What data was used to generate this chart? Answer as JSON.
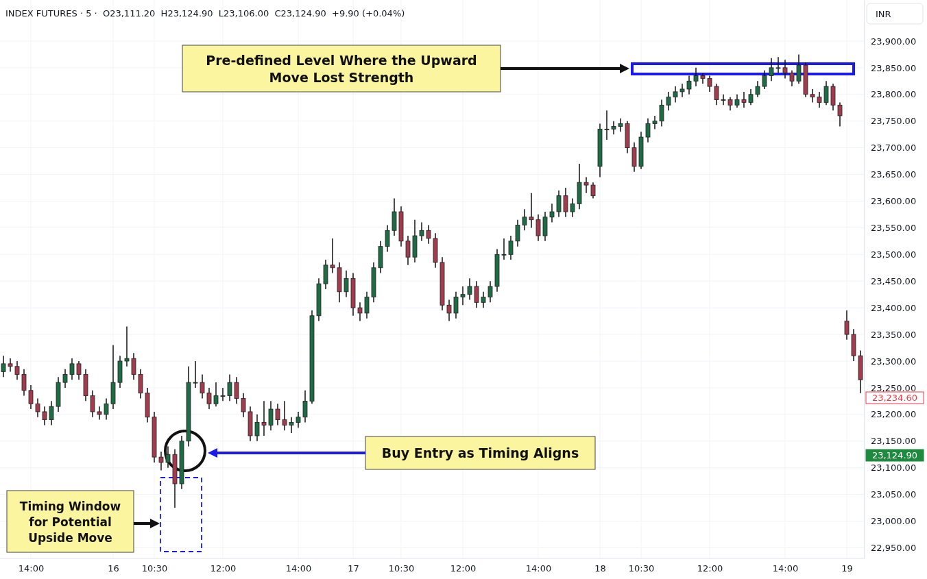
{
  "chart_data": {
    "type": "candlestick",
    "title": "INDEX FUTURES · 5 ·  O23,111.20  H23,124.90  L23,106.00  C23,124.90  +9.90 (+0.04%)",
    "categories": [
      null,
      null,
      null,
      null,
      "14:00",
      null,
      null,
      null,
      null,
      null,
      null,
      null,
      null,
      null,
      null,
      null,
      "16",
      null,
      null,
      null,
      null,
      null,
      "10:30",
      null,
      null,
      null,
      null,
      null,
      null,
      null,
      null,
      null,
      "12:00",
      null,
      null,
      null,
      null,
      null,
      null,
      null,
      null,
      null,
      null,
      "14:00",
      null,
      null,
      null,
      null,
      null,
      null,
      null,
      "17",
      null,
      null,
      null,
      null,
      null,
      null,
      "10:30",
      null,
      null,
      null,
      null,
      null,
      null,
      null,
      null,
      "12:00",
      null,
      null,
      null,
      null,
      null,
      null,
      null,
      null,
      null,
      null,
      "14:00",
      null,
      null,
      null,
      null,
      null,
      null,
      null,
      null,
      "18",
      null,
      null,
      null,
      null,
      null,
      "10:30",
      null,
      null,
      null,
      null,
      null,
      null,
      null,
      null,
      null,
      "12:00",
      null,
      null,
      null,
      null,
      null,
      null,
      null,
      null,
      null,
      null,
      "14:00",
      null,
      null,
      null,
      null,
      null,
      null,
      null,
      null,
      "19",
      null,
      null
    ],
    "ohlc": [
      [
        23280,
        23310,
        23270,
        23295
      ],
      [
        23295,
        23305,
        23280,
        23290
      ],
      [
        23290,
        23300,
        23265,
        23275
      ],
      [
        23275,
        23285,
        23235,
        23245
      ],
      [
        23245,
        23255,
        23210,
        23220
      ],
      [
        23220,
        23230,
        23195,
        23205
      ],
      [
        23205,
        23215,
        23180,
        23190
      ],
      [
        23190,
        23225,
        23180,
        23215
      ],
      [
        23215,
        23270,
        23205,
        23260
      ],
      [
        23260,
        23285,
        23250,
        23275
      ],
      [
        23275,
        23305,
        23265,
        23295
      ],
      [
        23295,
        23300,
        23265,
        23275
      ],
      [
        23275,
        23285,
        23225,
        23235
      ],
      [
        23235,
        23245,
        23195,
        23205
      ],
      [
        23205,
        23215,
        23190,
        23200
      ],
      [
        23200,
        23230,
        23190,
        23220
      ],
      [
        23220,
        23330,
        23210,
        23260
      ],
      [
        23260,
        23310,
        23250,
        23300
      ],
      [
        23300,
        23365,
        23290,
        23305
      ],
      [
        23305,
        23315,
        23265,
        23275
      ],
      [
        23275,
        23285,
        23230,
        23240
      ],
      [
        23240,
        23250,
        23185,
        23195
      ],
      [
        23195,
        23205,
        23110,
        23120
      ],
      [
        23120,
        23130,
        23095,
        23110
      ],
      [
        23110,
        23140,
        23100,
        23125
      ],
      [
        23125,
        23135,
        23025,
        23070
      ],
      [
        23070,
        23160,
        23060,
        23150
      ],
      [
        23150,
        23290,
        23140,
        23260
      ],
      [
        23260,
        23300,
        23250,
        23260
      ],
      [
        23260,
        23275,
        23230,
        23240
      ],
      [
        23240,
        23250,
        23210,
        23220
      ],
      [
        23220,
        23260,
        23215,
        23235
      ],
      [
        23235,
        23250,
        23225,
        23235
      ],
      [
        23235,
        23275,
        23225,
        23260
      ],
      [
        23260,
        23270,
        23220,
        23230
      ],
      [
        23230,
        23240,
        23195,
        23205
      ],
      [
        23205,
        23215,
        23150,
        23160
      ],
      [
        23160,
        23200,
        23150,
        23185
      ],
      [
        23185,
        23225,
        23160,
        23180
      ],
      [
        23180,
        23225,
        23170,
        23210
      ],
      [
        23210,
        23220,
        23180,
        23190
      ],
      [
        23190,
        23225,
        23170,
        23180
      ],
      [
        23180,
        23195,
        23165,
        23185
      ],
      [
        23185,
        23205,
        23175,
        23195
      ],
      [
        23195,
        23245,
        23185,
        23225
      ],
      [
        23225,
        23395,
        23220,
        23385
      ],
      [
        23385,
        23455,
        23375,
        23445
      ],
      [
        23445,
        23490,
        23435,
        23480
      ],
      [
        23480,
        23530,
        23465,
        23475
      ],
      [
        23475,
        23485,
        23410,
        23430
      ],
      [
        23430,
        23470,
        23420,
        23455
      ],
      [
        23455,
        23465,
        23385,
        23400
      ],
      [
        23400,
        23410,
        23375,
        23390
      ],
      [
        23390,
        23430,
        23380,
        23420
      ],
      [
        23420,
        23485,
        23410,
        23475
      ],
      [
        23475,
        23525,
        23465,
        23515
      ],
      [
        23515,
        23555,
        23505,
        23545
      ],
      [
        23545,
        23605,
        23535,
        23580
      ],
      [
        23580,
        23590,
        23515,
        23525
      ],
      [
        23525,
        23535,
        23480,
        23495
      ],
      [
        23495,
        23565,
        23485,
        23535
      ],
      [
        23535,
        23560,
        23525,
        23545
      ],
      [
        23545,
        23555,
        23520,
        23530
      ],
      [
        23530,
        23540,
        23475,
        23485
      ],
      [
        23485,
        23495,
        23395,
        23405
      ],
      [
        23405,
        23415,
        23375,
        23390
      ],
      [
        23390,
        23430,
        23380,
        23420
      ],
      [
        23420,
        23440,
        23405,
        23425
      ],
      [
        23425,
        23455,
        23415,
        23440
      ],
      [
        23440,
        23450,
        23400,
        23410
      ],
      [
        23410,
        23430,
        23400,
        23420
      ],
      [
        23420,
        23450,
        23410,
        23440
      ],
      [
        23440,
        23510,
        23430,
        23500
      ],
      [
        23500,
        23530,
        23490,
        23500
      ],
      [
        23500,
        23535,
        23490,
        23525
      ],
      [
        23525,
        23565,
        23515,
        23555
      ],
      [
        23555,
        23585,
        23545,
        23570
      ],
      [
        23570,
        23615,
        23550,
        23565
      ],
      [
        23565,
        23575,
        23525,
        23535
      ],
      [
        23535,
        23580,
        23525,
        23570
      ],
      [
        23570,
        23595,
        23560,
        23580
      ],
      [
        23580,
        23620,
        23570,
        23610
      ],
      [
        23610,
        23625,
        23570,
        23580
      ],
      [
        23580,
        23605,
        23570,
        23595
      ],
      [
        23595,
        23670,
        23585,
        23635
      ],
      [
        23635,
        23645,
        23615,
        23630
      ],
      [
        23630,
        23635,
        23605,
        23610
      ],
      [
        23665,
        23745,
        23645,
        23735
      ],
      [
        23735,
        23770,
        23715,
        23735
      ],
      [
        23735,
        23750,
        23725,
        23740
      ],
      [
        23740,
        23755,
        23730,
        23745
      ],
      [
        23745,
        23750,
        23690,
        23700
      ],
      [
        23700,
        23710,
        23655,
        23665
      ],
      [
        23665,
        23730,
        23660,
        23720
      ],
      [
        23720,
        23755,
        23710,
        23745
      ],
      [
        23745,
        23760,
        23735,
        23750
      ],
      [
        23750,
        23790,
        23740,
        23780
      ],
      [
        23780,
        23805,
        23770,
        23795
      ],
      [
        23795,
        23815,
        23785,
        23805
      ],
      [
        23805,
        23820,
        23795,
        23810
      ],
      [
        23810,
        23835,
        23800,
        23825
      ],
      [
        23825,
        23850,
        23815,
        23835
      ],
      [
        23835,
        23840,
        23820,
        23830
      ],
      [
        23830,
        23835,
        23805,
        23815
      ],
      [
        23815,
        23820,
        23780,
        23790
      ],
      [
        23790,
        23800,
        23780,
        23790
      ],
      [
        23790,
        23795,
        23770,
        23780
      ],
      [
        23780,
        23800,
        23775,
        23790
      ],
      [
        23790,
        23805,
        23775,
        23785
      ],
      [
        23785,
        23810,
        23780,
        23800
      ],
      [
        23800,
        23825,
        23795,
        23815
      ],
      [
        23815,
        23845,
        23810,
        23835
      ],
      [
        23835,
        23868,
        23825,
        23850
      ],
      [
        23850,
        23870,
        23840,
        23850
      ],
      [
        23850,
        23865,
        23830,
        23840
      ],
      [
        23840,
        23845,
        23815,
        23825
      ],
      [
        23825,
        23875,
        23820,
        23855
      ],
      [
        23855,
        23860,
        23795,
        23800
      ],
      [
        23800,
        23810,
        23785,
        23795
      ],
      [
        23795,
        23805,
        23775,
        23785
      ],
      [
        23785,
        23825,
        23780,
        23815
      ],
      [
        23815,
        23820,
        23770,
        23780
      ],
      [
        23780,
        23785,
        23740,
        23760
      ],
      [
        23375,
        23395,
        23340,
        23350
      ],
      [
        23350,
        23360,
        23300,
        23310
      ],
      [
        23310,
        23320,
        23240,
        23265
      ]
    ],
    "ylim": [
      22930,
      23977
    ],
    "yticks": [
      {
        "value": 22950,
        "label": "22,950.00"
      },
      {
        "value": 23000,
        "label": "23,000.00"
      },
      {
        "value": 23050,
        "label": "23,050.00"
      },
      {
        "value": 23100,
        "label": "23,100.00"
      },
      {
        "value": 23150,
        "label": "23,150.00"
      },
      {
        "value": 23200,
        "label": "23,200.00"
      },
      {
        "value": 23250,
        "label": "23,250.00"
      },
      {
        "value": 23300,
        "label": "23,300.00"
      },
      {
        "value": 23350,
        "label": "23,350.00"
      },
      {
        "value": 23400,
        "label": "23,400.00"
      },
      {
        "value": 23450,
        "label": "23,450.00"
      },
      {
        "value": 23500,
        "label": "23,500.00"
      },
      {
        "value": 23550,
        "label": "23,550.00"
      },
      {
        "value": 23600,
        "label": "23,600.00"
      },
      {
        "value": 23650,
        "label": "23,650.00"
      },
      {
        "value": 23700,
        "label": "23,700.00"
      },
      {
        "value": 23750,
        "label": "23,750.00"
      },
      {
        "value": 23800,
        "label": "23,800.00"
      },
      {
        "value": 23850,
        "label": "23,850.00"
      },
      {
        "value": 23900,
        "label": "23,900.00"
      }
    ],
    "grid": true,
    "annotations": [
      "Pre-defined Level Where the Upward Move Lost Strength",
      "Buy Entry as Timing Aligns",
      "Timing Window for Potential Upside Move",
      "INR",
      "23,234.60",
      "23,124.90"
    ]
  }
}
